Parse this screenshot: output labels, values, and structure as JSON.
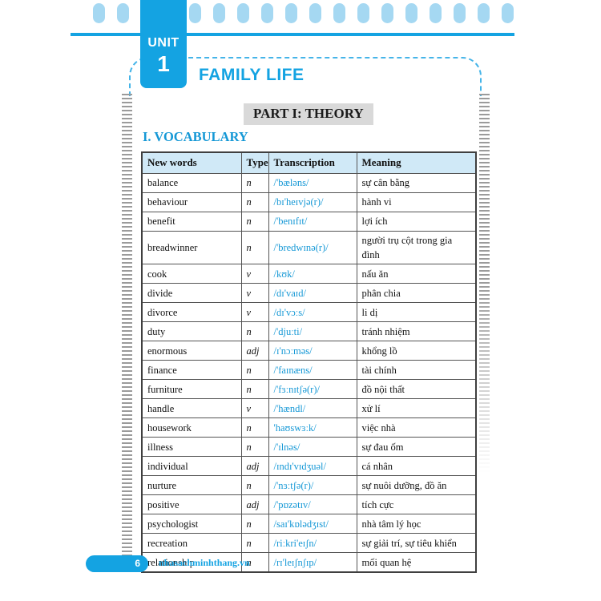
{
  "unit": {
    "label": "UNIT",
    "number": "1",
    "title": "FAMILY LIFE"
  },
  "part_heading": "PART I: THEORY",
  "section_heading": "I. VOCABULARY",
  "vocabulary": {
    "headers": [
      "New words",
      "Type",
      "Transcription",
      "Meaning"
    ],
    "rows": [
      {
        "word": "balance",
        "type": "n",
        "transcription": "/'bæləns/",
        "meaning": "sự cân bằng"
      },
      {
        "word": "behaviour",
        "type": "n",
        "transcription": "/bɪ'heɪvjə(r)/",
        "meaning": "hành vi"
      },
      {
        "word": "benefit",
        "type": "n",
        "transcription": "/'benɪfɪt/",
        "meaning": "lợi ích"
      },
      {
        "word": "breadwinner",
        "type": "n",
        "transcription": "/'bredwɪnə(r)/",
        "meaning": "người trụ cột trong gia đình"
      },
      {
        "word": "cook",
        "type": "v",
        "transcription": "/kʊk/",
        "meaning": "nấu ăn"
      },
      {
        "word": "divide",
        "type": "v",
        "transcription": "/dɪ'vaɪd/",
        "meaning": "phân chia"
      },
      {
        "word": "divorce",
        "type": "v",
        "transcription": "/dɪ'vɔːs/",
        "meaning": "li dị"
      },
      {
        "word": "duty",
        "type": "n",
        "transcription": "/'djuːti/",
        "meaning": "tránh nhiệm"
      },
      {
        "word": "enormous",
        "type": "adj",
        "transcription": "/ɪ'nɔːməs/",
        "meaning": "khổng lồ"
      },
      {
        "word": "finance",
        "type": "n",
        "transcription": "/'faɪnæns/",
        "meaning": "tài chính"
      },
      {
        "word": "furniture",
        "type": "n",
        "transcription": "/'fɜːnɪtʃə(r)/",
        "meaning": "đồ nội thất"
      },
      {
        "word": "handle",
        "type": "v",
        "transcription": "/'hændl/",
        "meaning": "xử lí"
      },
      {
        "word": "housework",
        "type": "n",
        "transcription": "'haʊswɜːk/",
        "meaning": "việc nhà"
      },
      {
        "word": "illness",
        "type": "n",
        "transcription": "/'ɪlnəs/",
        "meaning": "sự đau ốm"
      },
      {
        "word": "individual",
        "type": "adj",
        "transcription": "/ɪndɪ'vɪdʒuəl/",
        "meaning": "cá nhân"
      },
      {
        "word": "nurture",
        "type": "n",
        "transcription": "/'nɜːtʃə(r)/",
        "meaning": "sự nuôi dưỡng, đồ ăn"
      },
      {
        "word": "positive",
        "type": "adj",
        "transcription": "/'pɒzətɪv/",
        "meaning": "tích cực"
      },
      {
        "word": "psychologist",
        "type": "n",
        "transcription": "/saɪ'kɒlədʒɪst/",
        "meaning": "nhà tâm lý học"
      },
      {
        "word": "recreation",
        "type": "n",
        "transcription": "/riːkri'eɪʃn/",
        "meaning": "sự giải trí, sự tiêu khiển"
      },
      {
        "word": "relationship",
        "type": "n",
        "transcription": "/rɪ'leɪʃnʃɪp/",
        "meaning": "mối quan hệ"
      }
    ]
  },
  "footer": {
    "page_number": "6",
    "website": "nhasachminhthang.vn"
  },
  "colors": {
    "accent": "#14a3e2",
    "bars_light_blue": "#a5d8f2",
    "dash_blue": "#45b4e8",
    "transcription_blue": "#1598d6",
    "table_header_bg": "#d0e9f7",
    "part_heading_bg": "#d9d9d9",
    "table_border": "#555555",
    "ladder_gray": "#9b9b9b"
  },
  "decor": {
    "binding_hole_count": 18
  }
}
